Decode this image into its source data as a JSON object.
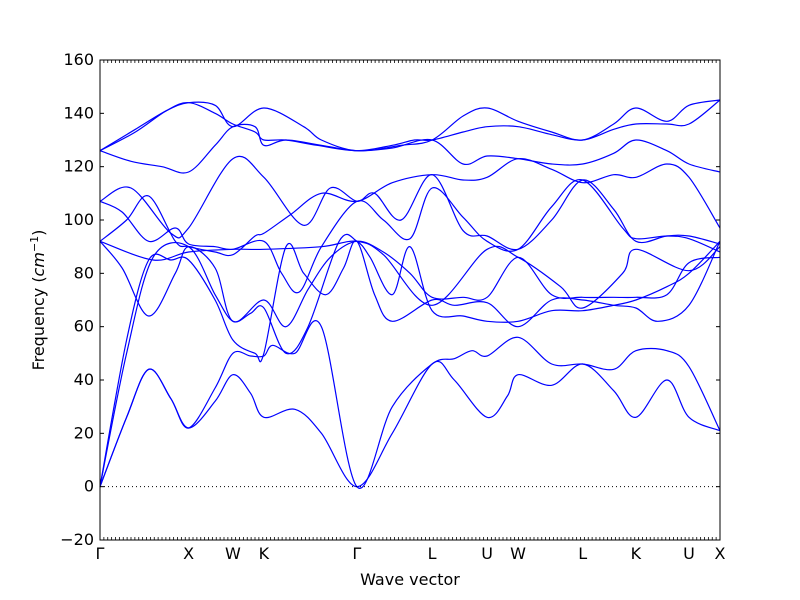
{
  "chart_data": {
    "type": "line",
    "title": "",
    "xlabel": "Wave vector",
    "ylabel": "Frequency",
    "ylabel_unit": "cm",
    "ylabel_unit_exponent": "−1",
    "ylim": [
      -20,
      160
    ],
    "yticks": [
      -20,
      0,
      20,
      40,
      60,
      80,
      100,
      120,
      140,
      160
    ],
    "xlim": [
      0,
      7.0
    ],
    "xticks": [
      {
        "x": 0.0,
        "label": "Γ"
      },
      {
        "x": 1.0,
        "label": "X"
      },
      {
        "x": 1.5,
        "label": "W"
      },
      {
        "x": 1.85,
        "label": "K"
      },
      {
        "x": 2.9,
        "label": "Γ"
      },
      {
        "x": 3.75,
        "label": "L"
      },
      {
        "x": 4.37,
        "label": "U"
      },
      {
        "x": 4.72,
        "label": "W"
      },
      {
        "x": 5.45,
        "label": "L"
      },
      {
        "x": 6.05,
        "label": "K"
      },
      {
        "x": 6.65,
        "label": "U"
      },
      {
        "x": 7.0,
        "label": "X"
      }
    ],
    "zero_line": true,
    "grid": false,
    "legend": "none",
    "series_color": "#0000ff",
    "series": [
      {
        "x": [
          0,
          0.3,
          0.55,
          0.8,
          1.0,
          1.3,
          1.5,
          1.7,
          1.85,
          2.2,
          2.5,
          2.9,
          3.3,
          3.75,
          4.0,
          4.37,
          4.6,
          4.72,
          5.1,
          5.45,
          5.8,
          6.05,
          6.4,
          6.65,
          7.0
        ],
        "y": [
          0,
          26,
          44,
          33,
          22,
          32,
          42,
          35,
          26,
          29,
          20,
          0,
          20,
          46,
          40,
          26,
          34,
          42,
          38,
          46,
          36,
          26,
          40,
          26,
          21
        ]
      },
      {
        "x": [
          0,
          0.3,
          0.55,
          0.8,
          1.0,
          1.3,
          1.5,
          1.7,
          1.85,
          1.95,
          2.2,
          2.5,
          2.9,
          3.3,
          3.75,
          4.0,
          4.2,
          4.37,
          4.72,
          5.1,
          5.45,
          5.8,
          6.05,
          6.4,
          6.65,
          7.0
        ],
        "y": [
          0,
          26,
          44,
          33,
          22,
          37,
          50,
          49,
          49,
          53,
          50,
          60,
          0,
          30,
          46,
          48,
          51,
          49,
          56,
          46,
          46,
          44,
          51,
          51,
          45,
          21
        ]
      },
      {
        "x": [
          0,
          0.3,
          0.6,
          1.0,
          1.3,
          1.5,
          1.7,
          1.85,
          2.1,
          2.35,
          2.7,
          2.9,
          3.05,
          3.3,
          3.5,
          3.75,
          4.1,
          4.37,
          4.72,
          5.1,
          5.45,
          5.8,
          6.05,
          6.4,
          6.65,
          7.0
        ],
        "y": [
          0,
          50,
          86,
          90,
          72,
          62,
          65,
          67,
          50,
          60,
          92,
          92,
          86,
          72,
          90,
          66,
          64,
          62,
          62,
          66,
          66,
          68,
          70,
          75,
          80,
          92
        ]
      },
      {
        "x": [
          0,
          0.3,
          0.55,
          0.8,
          1.0,
          1.3,
          1.5,
          1.75,
          1.85,
          2.1,
          2.3,
          2.55,
          2.75,
          2.9,
          3.1,
          3.3,
          3.75,
          4.0,
          4.37,
          4.72,
          5.1,
          5.45,
          5.8,
          6.05,
          6.3,
          6.65,
          7.0
        ],
        "y": [
          0,
          55,
          85,
          85,
          85,
          70,
          55,
          50,
          50,
          90,
          80,
          72,
          82,
          92,
          72,
          62,
          70,
          68,
          69,
          60,
          70,
          70,
          68,
          67,
          62,
          68,
          92
        ]
      },
      {
        "x": [
          0,
          0.25,
          0.55,
          0.85,
          1.0,
          1.3,
          1.5,
          1.85,
          2.1,
          2.35,
          2.6,
          2.9,
          3.2,
          3.5,
          3.75,
          4.1,
          4.37,
          4.72,
          5.1,
          5.45,
          5.8,
          6.05,
          6.4,
          6.65,
          7.0
        ],
        "y": [
          92,
          82,
          64,
          80,
          90,
          82,
          62,
          70,
          60,
          74,
          86,
          92,
          88,
          80,
          71,
          71,
          71,
          86,
          72,
          71,
          71,
          71,
          72,
          84,
          86
        ]
      },
      {
        "x": [
          0,
          0.6,
          1.0,
          1.5,
          1.85,
          2.5,
          2.9,
          3.2,
          3.75,
          4.37,
          4.72,
          5.2,
          5.45,
          5.9,
          6.05,
          6.65,
          7.0
        ],
        "y": [
          92,
          85,
          88,
          89,
          89,
          90,
          92,
          87,
          68,
          89,
          86,
          75,
          67,
          80,
          89,
          81,
          90
        ]
      },
      {
        "x": [
          0,
          0.25,
          0.55,
          0.85,
          1.0,
          1.3,
          1.5,
          1.85,
          2.05,
          2.25,
          2.5,
          2.9,
          3.2,
          3.5,
          3.75,
          4.1,
          4.37,
          4.72,
          5.1,
          5.45,
          5.9,
          6.05,
          6.4,
          6.65,
          7.0
        ],
        "y": [
          107,
          103,
          92,
          97,
          91,
          90,
          89,
          92,
          80,
          73,
          90,
          107,
          100,
          93,
          112,
          101,
          92,
          89,
          105,
          115,
          97,
          93,
          94,
          93,
          88
        ]
      },
      {
        "x": [
          0,
          0.35,
          0.8,
          1.0,
          1.5,
          1.85,
          2.3,
          2.6,
          2.9,
          3.1,
          3.4,
          3.75,
          4.1,
          4.37,
          4.72,
          5.1,
          5.45,
          5.8,
          6.05,
          6.4,
          6.65,
          7.0
        ],
        "y": [
          107,
          112,
          95,
          97,
          123,
          116,
          98,
          112,
          107,
          110,
          100,
          117,
          96,
          94,
          89,
          100,
          115,
          104,
          92,
          94,
          94,
          91
        ]
      },
      {
        "x": [
          0,
          0.3,
          0.55,
          0.85,
          1.0,
          1.3,
          1.5,
          1.75,
          1.85,
          2.15,
          2.5,
          2.9,
          3.3,
          3.75,
          4.1,
          4.37,
          4.72,
          5.1,
          5.45,
          5.8,
          6.05,
          6.4,
          6.65,
          7.0
        ],
        "y": [
          92,
          100,
          109,
          92,
          90,
          88,
          87,
          94,
          95,
          102,
          110,
          107,
          114,
          117,
          115,
          116,
          123,
          119,
          114,
          117,
          116,
          121,
          116,
          97
        ]
      },
      {
        "x": [
          0,
          0.35,
          0.7,
          1.0,
          1.3,
          1.5,
          1.75,
          1.85,
          2.1,
          2.5,
          2.9,
          3.3,
          3.75,
          4.1,
          4.37,
          4.72,
          5.1,
          5.45,
          5.8,
          6.05,
          6.4,
          6.65,
          7.0
        ],
        "y": [
          126,
          122,
          120,
          118,
          128,
          135,
          135,
          128,
          130,
          128,
          126,
          127,
          130,
          121,
          124,
          123,
          121,
          121,
          125,
          130,
          126,
          121,
          118
        ]
      },
      {
        "x": [
          0,
          0.4,
          0.75,
          1.0,
          1.3,
          1.5,
          1.75,
          1.85,
          2.1,
          2.45,
          2.9,
          3.3,
          3.55,
          3.75,
          4.1,
          4.37,
          4.72,
          5.1,
          5.45,
          5.8,
          6.05,
          6.4,
          6.65,
          7.0
        ],
        "y": [
          126,
          133,
          141,
          144,
          140,
          136,
          133,
          130,
          130,
          128,
          126,
          128,
          130,
          130,
          133,
          135,
          135,
          132,
          130,
          134,
          136,
          136,
          136,
          145
        ]
      },
      {
        "x": [
          0,
          0.4,
          0.75,
          1.0,
          1.3,
          1.5,
          1.85,
          2.3,
          2.5,
          2.9,
          3.4,
          3.75,
          4.1,
          4.37,
          4.72,
          5.1,
          5.45,
          5.8,
          6.05,
          6.4,
          6.65,
          7.0
        ],
        "y": [
          126,
          134,
          141,
          144,
          143,
          135,
          142,
          135,
          130,
          126,
          128,
          130,
          139,
          142,
          137,
          133,
          130,
          136,
          142,
          137,
          143,
          145
        ]
      }
    ]
  }
}
